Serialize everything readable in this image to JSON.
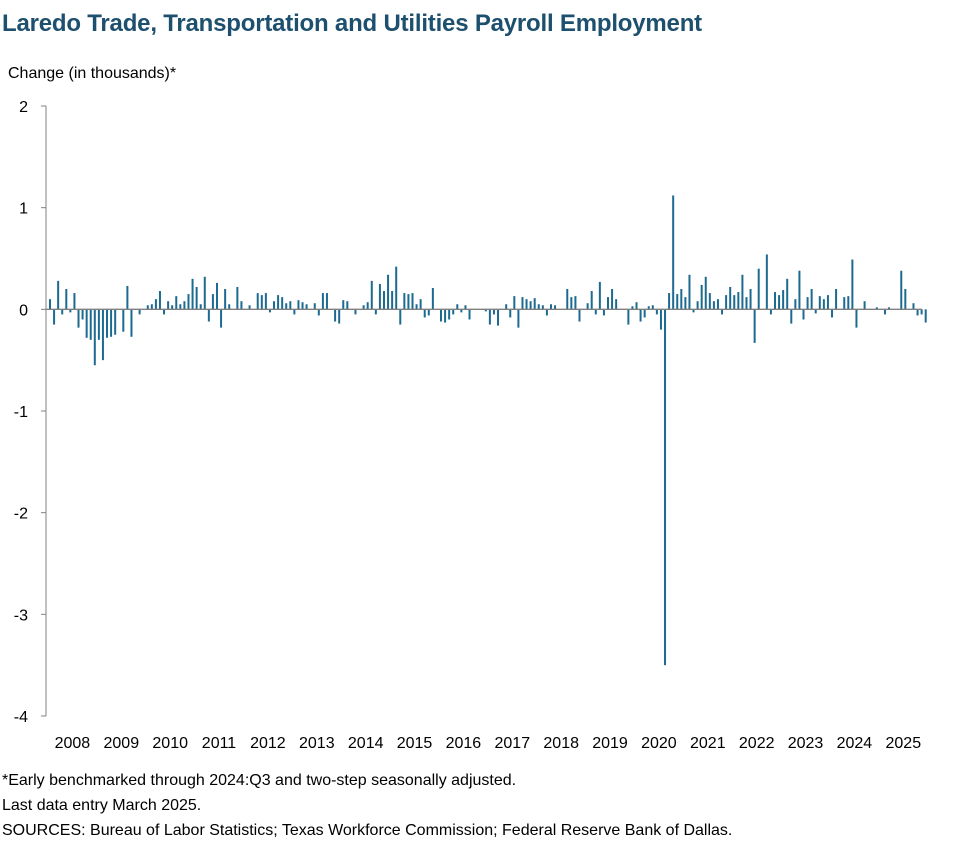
{
  "chart_data": {
    "type": "bar",
    "title": "Laredo Trade, Transportation and Utilities Payroll Employment",
    "ylabel": "Change (in thousands)*",
    "xlabel": "",
    "ylim": [
      -4,
      2
    ],
    "yticks": [
      "2",
      "1",
      "0",
      "-1",
      "-2",
      "-3",
      "-4"
    ],
    "ytick_values": [
      2,
      1,
      0,
      -1,
      -2,
      -3,
      -4
    ],
    "xtick_labels": [
      "2008",
      "2009",
      "2010",
      "2011",
      "2012",
      "2013",
      "2014",
      "2015",
      "2016",
      "2017",
      "2018",
      "2019",
      "2020",
      "2021",
      "2022",
      "2023",
      "2024",
      "2025"
    ],
    "frequency": "monthly",
    "start": "2008-01",
    "end": "2025-03",
    "bar_color": "#1d6a91",
    "grid": false,
    "legend": "none",
    "values": [
      0.1,
      -0.15,
      0.28,
      -0.05,
      0.2,
      -0.03,
      0.16,
      -0.18,
      -0.1,
      -0.28,
      -0.3,
      -0.55,
      -0.3,
      -0.5,
      -0.28,
      -0.27,
      -0.25,
      0.0,
      -0.22,
      0.23,
      -0.27,
      0.0,
      -0.05,
      0.0,
      0.04,
      0.05,
      0.1,
      0.18,
      -0.05,
      0.08,
      0.04,
      0.13,
      0.05,
      0.08,
      0.15,
      0.3,
      0.22,
      0.05,
      0.32,
      -0.12,
      0.15,
      0.26,
      -0.18,
      0.2,
      0.05,
      0.0,
      0.22,
      0.08,
      0.0,
      0.04,
      0.0,
      0.16,
      0.14,
      0.16,
      -0.03,
      0.08,
      0.14,
      0.12,
      0.06,
      0.08,
      -0.05,
      0.09,
      0.07,
      0.05,
      0.0,
      0.06,
      -0.06,
      0.16,
      0.16,
      0.0,
      -0.12,
      -0.14,
      0.09,
      0.08,
      0.0,
      -0.05,
      0.0,
      0.04,
      0.07,
      0.28,
      -0.05,
      0.25,
      0.18,
      0.34,
      0.18,
      0.42,
      -0.15,
      0.16,
      0.15,
      0.16,
      0.05,
      0.1,
      -0.08,
      -0.06,
      0.21,
      0.0,
      -0.12,
      -0.13,
      -0.1,
      -0.05,
      0.05,
      -0.03,
      0.04,
      -0.1,
      0.0,
      0.0,
      0.0,
      -0.02,
      -0.15,
      -0.05,
      -0.16,
      0.0,
      0.05,
      -0.08,
      0.13,
      -0.18,
      0.12,
      0.1,
      0.08,
      0.11,
      0.05,
      0.04,
      -0.06,
      0.05,
      0.04,
      0.0,
      0.0,
      0.2,
      0.12,
      0.13,
      -0.12,
      0.0,
      0.06,
      0.18,
      -0.05,
      0.27,
      -0.06,
      0.12,
      0.2,
      0.1,
      0.0,
      0.0,
      -0.15,
      0.03,
      0.07,
      -0.12,
      -0.08,
      0.03,
      0.04,
      -0.05,
      -0.2,
      -3.5,
      0.16,
      1.12,
      0.15,
      0.2,
      0.12,
      0.34,
      -0.03,
      0.08,
      0.24,
      0.32,
      0.16,
      0.08,
      0.1,
      -0.05,
      0.14,
      0.22,
      0.14,
      0.17,
      0.34,
      0.12,
      0.2,
      -0.33,
      0.4,
      0.0,
      0.54,
      -0.05,
      0.17,
      0.14,
      0.19,
      0.3,
      -0.14,
      0.1,
      0.38,
      -0.1,
      0.12,
      0.2,
      -0.04,
      0.13,
      0.1,
      0.14,
      -0.08,
      0.2,
      0.0,
      0.12,
      0.13,
      0.49,
      -0.18,
      0.0,
      0.08,
      0.0,
      0.0,
      0.02,
      0.0,
      -0.05,
      0.02,
      0.0,
      0.0,
      0.38,
      0.2,
      0.0,
      0.06,
      -0.06,
      -0.05,
      -0.13,
      0.0,
      0.0,
      0.0
    ]
  },
  "notes": {
    "line1": "*Early benchmarked through 2024:Q3 and two-step seasonally adjusted.",
    "line2": "Last data entry March 2025.",
    "line3": "SOURCES:  Bureau of Labor Statistics;  Texas Workforce Commission;  Federal Reserve Bank of Dallas."
  }
}
